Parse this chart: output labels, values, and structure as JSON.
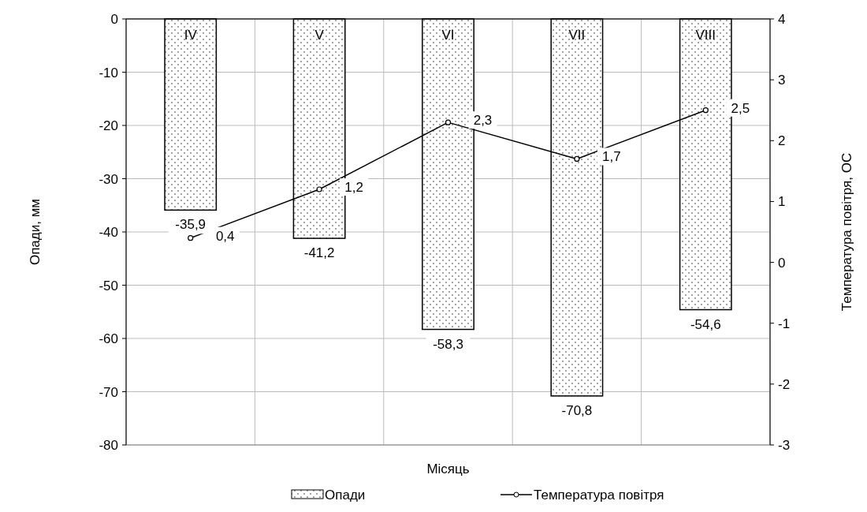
{
  "chart_data": {
    "type": "bar",
    "xlabel": "Місяць",
    "ylabel": "Опади, мм",
    "y2label": "Температура повітря, ОС",
    "categories": [
      "IV",
      "V",
      "VI",
      "VII",
      "VIII"
    ],
    "series": [
      {
        "name": "Опади",
        "color": "#000000",
        "values": [
          -35.9,
          -41.2,
          -58.3,
          -70.8,
          -54.6
        ],
        "value_labels": [
          "-35,9",
          "-41,2",
          "-58,3",
          "-70,8",
          "-54,6"
        ]
      },
      {
        "name": "Температура повітря",
        "type": "line",
        "axis": "y2",
        "color": "#000000",
        "marker": "circle",
        "values": [
          0.4,
          1.2,
          2.3,
          1.7,
          2.5
        ],
        "value_labels": [
          "0,4",
          "1,2",
          "2,3",
          "1,7",
          "2,5"
        ]
      }
    ],
    "ylim": [
      -80,
      0
    ],
    "yticks": [
      0,
      -10,
      -20,
      -30,
      -40,
      -50,
      -60,
      -70,
      -80
    ],
    "y2lim": [
      -3,
      4
    ],
    "y2ticks": [
      4,
      3,
      2,
      1,
      0,
      -1,
      -2,
      -3
    ],
    "grid": true,
    "legend": "bottom"
  }
}
